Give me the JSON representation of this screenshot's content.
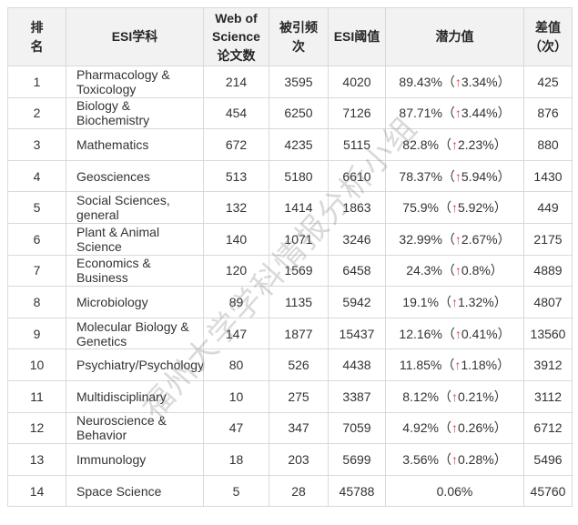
{
  "page": {
    "watermark": "福州大学学科情报分析小组"
  },
  "table": {
    "columns": [
      {
        "key": "rank",
        "label": "排\n名"
      },
      {
        "key": "subject",
        "label": "ESI学科"
      },
      {
        "key": "papers",
        "label": "Web of\nScience\n论文数"
      },
      {
        "key": "citations",
        "label": "被引频\n次"
      },
      {
        "key": "threshold",
        "label": "ESI阈值"
      },
      {
        "key": "potential",
        "label": "潜力值"
      },
      {
        "key": "gap",
        "label": "差值\n（次）"
      }
    ],
    "potential_format": {
      "open": "（",
      "close": "）",
      "arrow": "↑",
      "arrow_color": "#e03c3c"
    },
    "rows": [
      {
        "rank": "1",
        "subject": "Pharmacology & Toxicology",
        "papers": "214",
        "citations": "3595",
        "threshold": "4020",
        "potential": "89.43%",
        "delta": "3.34%",
        "gap": "425"
      },
      {
        "rank": "2",
        "subject": "Biology & Biochemistry",
        "papers": "454",
        "citations": "6250",
        "threshold": "7126",
        "potential": "87.71%",
        "delta": "3.44%",
        "gap": "876"
      },
      {
        "rank": "3",
        "subject": "Mathematics",
        "papers": "672",
        "citations": "4235",
        "threshold": "5115",
        "potential": "82.8%",
        "delta": "2.23%",
        "gap": "880"
      },
      {
        "rank": "4",
        "subject": "Geosciences",
        "papers": "513",
        "citations": "5180",
        "threshold": "6610",
        "potential": "78.37%",
        "delta": "5.94%",
        "gap": "1430"
      },
      {
        "rank": "5",
        "subject": "Social Sciences, general",
        "papers": "132",
        "citations": "1414",
        "threshold": "1863",
        "potential": "75.9%",
        "delta": "5.92%",
        "gap": "449"
      },
      {
        "rank": "6",
        "subject": "Plant & Animal Science",
        "papers": "140",
        "citations": "1071",
        "threshold": "3246",
        "potential": "32.99%",
        "delta": "2.67%",
        "gap": "2175"
      },
      {
        "rank": "7",
        "subject": "Economics & Business",
        "papers": "120",
        "citations": "1569",
        "threshold": "6458",
        "potential": "24.3%",
        "delta": "0.8%",
        "gap": "4889"
      },
      {
        "rank": "8",
        "subject": "Microbiology",
        "papers": "89",
        "citations": "1135",
        "threshold": "5942",
        "potential": "19.1%",
        "delta": "1.32%",
        "gap": "4807"
      },
      {
        "rank": "9",
        "subject": "Molecular Biology & Genetics",
        "papers": "147",
        "citations": "1877",
        "threshold": "15437",
        "potential": "12.16%",
        "delta": "0.41%",
        "gap": "13560"
      },
      {
        "rank": "10",
        "subject": "Psychiatry/Psychology",
        "papers": "80",
        "citations": "526",
        "threshold": "4438",
        "potential": "11.85%",
        "delta": "1.18%",
        "gap": "3912"
      },
      {
        "rank": "11",
        "subject": "Multidisciplinary",
        "papers": "10",
        "citations": "275",
        "threshold": "3387",
        "potential": "8.12%",
        "delta": "0.21%",
        "gap": "3112"
      },
      {
        "rank": "12",
        "subject": "Neuroscience & Behavior",
        "papers": "47",
        "citations": "347",
        "threshold": "7059",
        "potential": "4.92%",
        "delta": "0.26%",
        "gap": "6712"
      },
      {
        "rank": "13",
        "subject": "Immunology",
        "papers": "18",
        "citations": "203",
        "threshold": "5699",
        "potential": "3.56%",
        "delta": "0.28%",
        "gap": "5496"
      },
      {
        "rank": "14",
        "subject": "Space Science",
        "papers": "5",
        "citations": "28",
        "threshold": "45788",
        "potential": "0.06%",
        "delta": null,
        "gap": "45760"
      }
    ]
  }
}
